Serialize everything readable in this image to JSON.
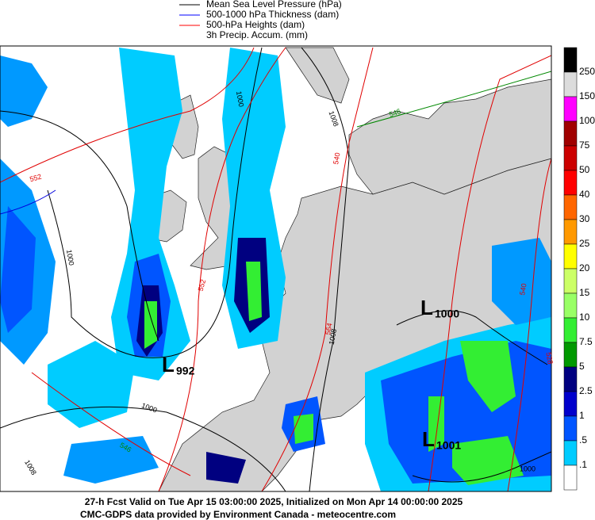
{
  "legend": [
    {
      "label": "Mean Sea Level Pressure (hPa)",
      "color": "#000000"
    },
    {
      "label": "500-1000 hPa Thickness (dam)",
      "color": "#0000ff"
    },
    {
      "label": "500-hPa Heights (dam)",
      "color": "#ff0000"
    },
    {
      "label": "3h Precip. Accum. (mm)"
    }
  ],
  "colorbar": {
    "labels": [
      "250",
      "150",
      "100",
      "75",
      "50",
      "40",
      "30",
      "25",
      "20",
      "15",
      "10",
      "7.5",
      "5",
      "2.5",
      "1",
      ".5",
      ".1"
    ],
    "colors": [
      "#000000",
      "#dcdcdc",
      "#ff00ff",
      "#a00000",
      "#cc0000",
      "#ff0000",
      "#ff6600",
      "#ff9900",
      "#ffff00",
      "#ccff66",
      "#99ff66",
      "#33ee33",
      "#009900",
      "#000080",
      "#0000cc",
      "#0055ff",
      "#00ccff",
      "#ffffff"
    ]
  },
  "lows": [
    {
      "letter": "L",
      "value": "992"
    },
    {
      "letter": "L",
      "value": "1000"
    },
    {
      "letter": "L",
      "value": "1001"
    }
  ],
  "contour_labels": [
    {
      "text": "1008",
      "color": "#000000"
    },
    {
      "text": "1000",
      "color": "#000000"
    },
    {
      "text": "1000",
      "color": "#000000"
    },
    {
      "text": "1000",
      "color": "#000000"
    },
    {
      "text": "1008",
      "color": "#000000"
    },
    {
      "text": "1000",
      "color": "#000000"
    },
    {
      "text": "1008",
      "color": "#000000"
    },
    {
      "text": "528",
      "color": "#e00000"
    },
    {
      "text": "552",
      "color": "#e00000"
    },
    {
      "text": "540",
      "color": "#e00000"
    },
    {
      "text": "552",
      "color": "#e00000"
    },
    {
      "text": "564",
      "color": "#e00000"
    },
    {
      "text": "540",
      "color": "#e00000"
    },
    {
      "text": "546",
      "color": "#008800"
    },
    {
      "text": "546",
      "color": "#008800"
    }
  ],
  "footer": [
    "27-h Fcst Valid on Tue Apr 15 03:00:00 2025, Initialized on Mon Apr 14 00:00:00 2025",
    "CMC-GDPS data provided by Environment Canada - meteocentre.com"
  ]
}
